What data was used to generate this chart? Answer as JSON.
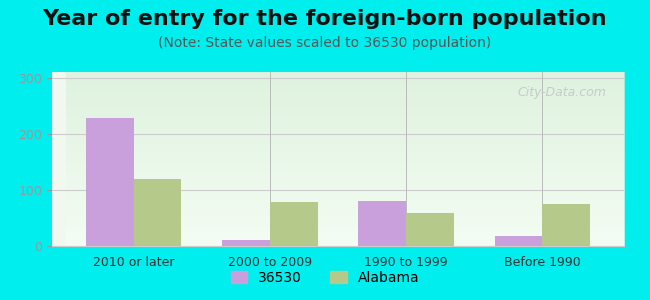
{
  "title": "Year of entry for the foreign-born population",
  "subtitle": "(Note: State values scaled to 36530 population)",
  "categories": [
    "2010 or later",
    "2000 to 2009",
    "1990 to 1999",
    "Before 1990"
  ],
  "series_36530": [
    228,
    10,
    80,
    17
  ],
  "series_alabama": [
    120,
    78,
    58,
    75
  ],
  "color_36530": "#c9a0dc",
  "color_alabama": "#b5c98a",
  "ylim": [
    0,
    310
  ],
  "yticks": [
    0,
    100,
    200,
    300
  ],
  "bar_width": 0.35,
  "background_color": "#ffffff",
  "outer_background": "#00eeee",
  "chart_bg_top": "#e8f5e8",
  "chart_bg_bottom": "#f8fff8",
  "title_fontsize": 16,
  "subtitle_fontsize": 10,
  "legend_labels": [
    "36530",
    "Alabama"
  ],
  "watermark": "City-Data.com"
}
